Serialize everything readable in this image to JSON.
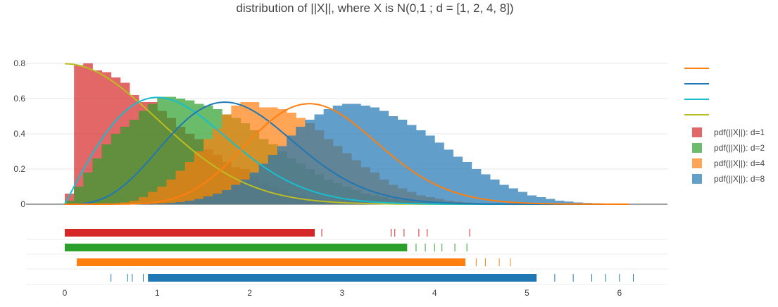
{
  "chart_data": {
    "type": "histogram",
    "title": "distribution of ||X||, where X is N(0,1 ; d = [1, 2, 4, 8])",
    "xlabel": "",
    "ylabel": "",
    "xlim": [
      -0.4,
      6.5
    ],
    "ylim": [
      0,
      0.8
    ],
    "x_ticks": [
      "0",
      "1",
      "2",
      "3",
      "4",
      "5",
      "6"
    ],
    "y_ticks": [
      "0",
      "0.2",
      "0.4",
      "0.6",
      "0.8"
    ],
    "grid": true,
    "legend_position": "right",
    "bin_width": 0.1,
    "series": [
      {
        "name": "pdf(||X||): d=1",
        "color": "#d62728",
        "bins_start": 0,
        "values": [
          0.06,
          0.79,
          0.8,
          0.76,
          0.75,
          0.72,
          0.69,
          0.62,
          0.58,
          0.58,
          0.53,
          0.49,
          0.44,
          0.4,
          0.37,
          0.31,
          0.28,
          0.24,
          0.21,
          0.2,
          0.16,
          0.12,
          0.1,
          0.085,
          0.06,
          0.05,
          0.035,
          0.027,
          0.02,
          0.015,
          0.013,
          0.01,
          0.007,
          0.005,
          0.004,
          0.003,
          0.002,
          0.002,
          0.001,
          0.001,
          0.001,
          0.001,
          0.001,
          0.001
        ],
        "rug_range": [
          0,
          4.38
        ],
        "rug_outliers": [
          2.7,
          2.78,
          3.53,
          3.57,
          3.67,
          3.83,
          3.92,
          4.38
        ]
      },
      {
        "name": "pdf(||X||): d=2",
        "color": "#2ca02c",
        "bins_start": 0,
        "values": [
          0.02,
          0.1,
          0.18,
          0.26,
          0.34,
          0.4,
          0.44,
          0.48,
          0.53,
          0.57,
          0.61,
          0.61,
          0.6,
          0.59,
          0.57,
          0.56,
          0.54,
          0.51,
          0.49,
          0.46,
          0.42,
          0.37,
          0.34,
          0.3,
          0.26,
          0.23,
          0.2,
          0.17,
          0.14,
          0.12,
          0.1,
          0.08,
          0.06,
          0.05,
          0.04,
          0.03,
          0.025,
          0.018,
          0.013,
          0.01,
          0.008,
          0.006,
          0.004,
          0.003,
          0.002
        ],
        "rug_range": [
          0,
          4.35
        ],
        "rug_outliers": [
          3.7,
          3.8,
          3.9,
          4.0,
          4.08,
          4.22,
          4.35
        ]
      },
      {
        "name": "pdf(||X||): d=4",
        "color": "#ff7f0e",
        "bins_start": 0.5,
        "values": [
          0.005,
          0.01,
          0.02,
          0.04,
          0.07,
          0.1,
          0.14,
          0.19,
          0.24,
          0.3,
          0.37,
          0.43,
          0.51,
          0.56,
          0.58,
          0.58,
          0.55,
          0.55,
          0.54,
          0.52,
          0.49,
          0.46,
          0.42,
          0.37,
          0.33,
          0.29,
          0.25,
          0.21,
          0.18,
          0.14,
          0.11,
          0.09,
          0.07,
          0.05,
          0.04,
          0.03,
          0.02,
          0.015,
          0.01,
          0.007,
          0.005
        ],
        "rug_range": [
          0.13,
          4.82
        ],
        "rug_outliers": [
          4.33,
          4.45,
          4.55,
          4.7,
          4.82
        ]
      },
      {
        "name": "pdf(||X||): d=8",
        "color": "#1f77b4",
        "bins_start": 0.9,
        "values": [
          0.002,
          0.005,
          0.008,
          0.012,
          0.02,
          0.03,
          0.045,
          0.06,
          0.08,
          0.11,
          0.14,
          0.18,
          0.23,
          0.28,
          0.33,
          0.39,
          0.44,
          0.48,
          0.51,
          0.54,
          0.56,
          0.57,
          0.57,
          0.56,
          0.55,
          0.53,
          0.5,
          0.48,
          0.45,
          0.42,
          0.39,
          0.35,
          0.31,
          0.27,
          0.24,
          0.2,
          0.17,
          0.14,
          0.11,
          0.09,
          0.07,
          0.05,
          0.04,
          0.03,
          0.02,
          0.015,
          0.01,
          0.007,
          0.005,
          0.003,
          0.002
        ],
        "rug_range": [
          0.5,
          6.15
        ],
        "rug_outliers": [
          0.5,
          0.68,
          0.73,
          0.85,
          5.1,
          5.3,
          5.5,
          5.7,
          5.85,
          6.0,
          6.15
        ]
      }
    ],
    "curves": [
      {
        "label": "d=1 pdf",
        "color": "#bcbd22",
        "d": 1,
        "x_end": 6.1
      },
      {
        "label": "d=2 pdf",
        "color": "#17becf",
        "d": 2,
        "x_end": 6.1
      },
      {
        "label": "d=4 pdf",
        "color": "#1f77b4",
        "d": 4,
        "x_end": 6.1
      },
      {
        "label": "d=8 pdf",
        "color": "#ff7f0e",
        "d": 8,
        "x_end": 6.1
      }
    ],
    "legend_line_colors": [
      "#ff7f0e",
      "#1f77b4",
      "#17becf",
      "#bcbd22"
    ]
  }
}
